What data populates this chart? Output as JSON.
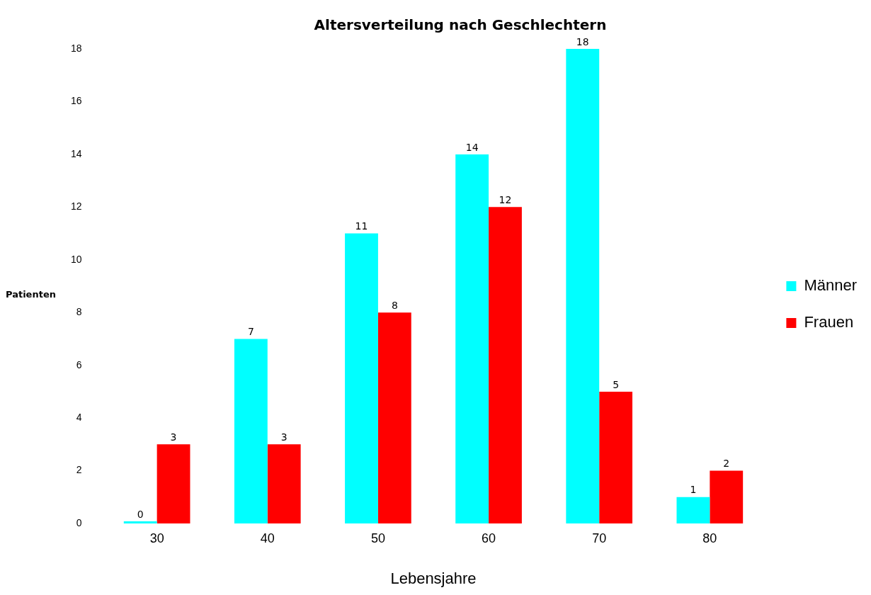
{
  "chart_data": {
    "type": "bar",
    "title": "Altersverteilung nach Geschlechtern",
    "xlabel": "Lebensjahre",
    "ylabel": "Patienten",
    "categories": [
      "30",
      "40",
      "50",
      "60",
      "70",
      "80"
    ],
    "series": [
      {
        "name": "Männer",
        "color": "#00ffff",
        "values": [
          0,
          7,
          11,
          14,
          18,
          1
        ]
      },
      {
        "name": "Frauen",
        "color": "#ff0000",
        "values": [
          3,
          3,
          8,
          12,
          5,
          2
        ]
      }
    ],
    "ylim": [
      0,
      18
    ],
    "yticks": [
      0,
      2,
      4,
      6,
      8,
      10,
      12,
      14,
      16,
      18
    ],
    "data_labels": true,
    "legend": "right"
  }
}
